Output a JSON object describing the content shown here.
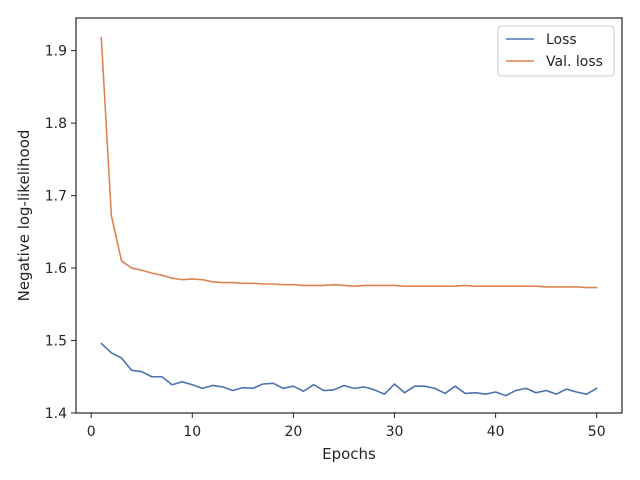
{
  "chart_data": {
    "type": "line",
    "title": "",
    "xlabel": "Epochs",
    "ylabel": "Negative log-likelihood",
    "xlim": [
      -1.5,
      52.5
    ],
    "ylim": [
      1.4,
      1.945
    ],
    "xticks": [
      0,
      10,
      20,
      30,
      40,
      50
    ],
    "yticks": [
      1.4,
      1.5,
      1.6,
      1.7,
      1.8,
      1.9
    ],
    "xtick_labels": [
      "0",
      "10",
      "20",
      "30",
      "40",
      "50"
    ],
    "ytick_labels": [
      "1.4",
      "1.5",
      "1.6",
      "1.7",
      "1.8",
      "1.9"
    ],
    "grid": false,
    "legend_position": "top-right",
    "x": [
      1,
      2,
      3,
      4,
      5,
      6,
      7,
      8,
      9,
      10,
      11,
      12,
      13,
      14,
      15,
      16,
      17,
      18,
      19,
      20,
      21,
      22,
      23,
      24,
      25,
      26,
      27,
      28,
      29,
      30,
      31,
      32,
      33,
      34,
      35,
      36,
      37,
      38,
      39,
      40,
      41,
      42,
      43,
      44,
      45,
      46,
      47,
      48,
      49,
      50
    ],
    "series": [
      {
        "name": "Loss",
        "color": "#4c72b0",
        "values": [
          1.496,
          1.483,
          1.476,
          1.459,
          1.457,
          1.45,
          1.45,
          1.439,
          1.443,
          1.439,
          1.434,
          1.438,
          1.436,
          1.431,
          1.435,
          1.434,
          1.44,
          1.441,
          1.434,
          1.437,
          1.43,
          1.439,
          1.431,
          1.432,
          1.438,
          1.434,
          1.436,
          1.432,
          1.426,
          1.44,
          1.428,
          1.437,
          1.437,
          1.434,
          1.427,
          1.437,
          1.427,
          1.428,
          1.426,
          1.429,
          1.424,
          1.431,
          1.434,
          1.428,
          1.431,
          1.426,
          1.433,
          1.429,
          1.426,
          1.434
        ]
      },
      {
        "name": "Val. loss",
        "color": "#dd8452",
        "values": [
          1.918,
          1.672,
          1.61,
          1.6,
          1.597,
          1.593,
          1.59,
          1.586,
          1.584,
          1.585,
          1.584,
          1.581,
          1.58,
          1.58,
          1.579,
          1.579,
          1.578,
          1.578,
          1.577,
          1.577,
          1.576,
          1.576,
          1.576,
          1.577,
          1.576,
          1.575,
          1.576,
          1.576,
          1.576,
          1.576,
          1.575,
          1.575,
          1.575,
          1.575,
          1.575,
          1.575,
          1.576,
          1.575,
          1.575,
          1.575,
          1.575,
          1.575,
          1.575,
          1.575,
          1.574,
          1.574,
          1.574,
          1.574,
          1.573,
          1.573
        ]
      }
    ]
  }
}
